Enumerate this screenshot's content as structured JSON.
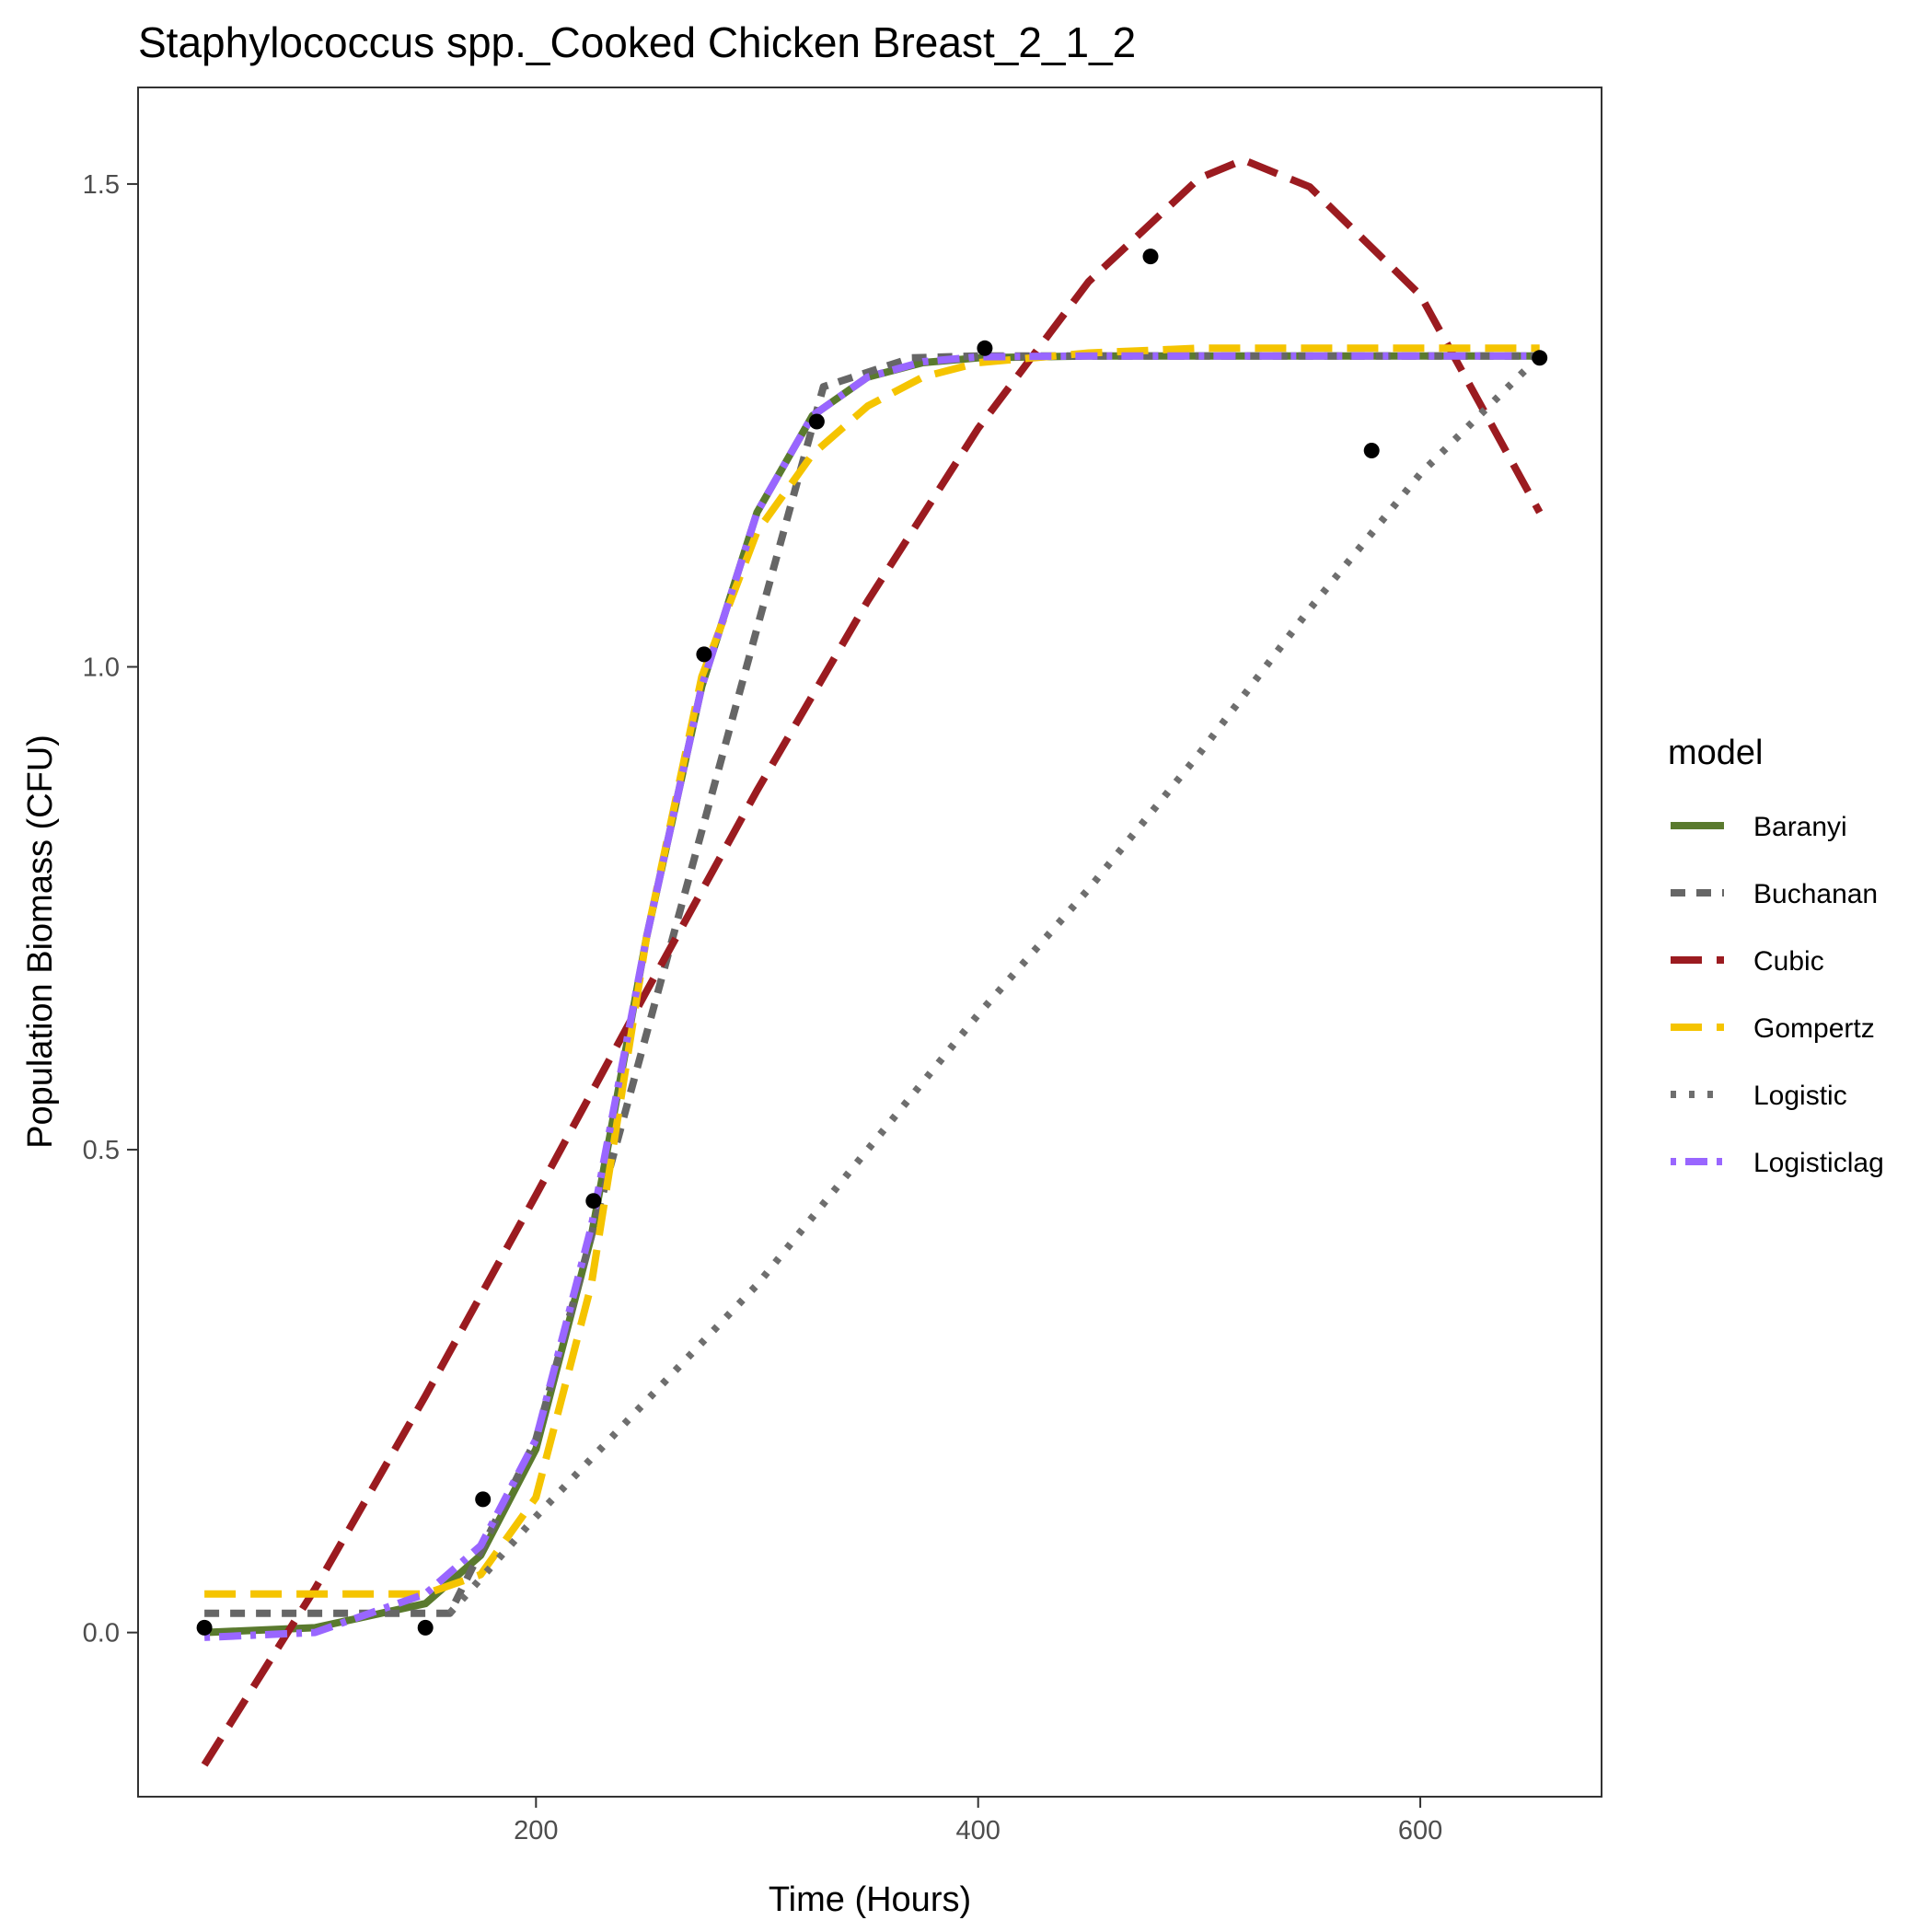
{
  "chart_data": {
    "type": "line",
    "title": "Staphylococcus spp._Cooked Chicken Breast_2_1_2",
    "xlabel": "Time (Hours)",
    "ylabel": "Population Biomass (CFU)",
    "xlim": [
      20,
      682
    ],
    "ylim": [
      -0.17,
      1.6
    ],
    "x_ticks": [
      200,
      400,
      600
    ],
    "x_tick_labels": [
      "200",
      "400",
      "600"
    ],
    "y_ticks": [
      0.0,
      0.5,
      1.0,
      1.5
    ],
    "y_tick_labels": [
      "0.0",
      "0.5",
      "1.0",
      "1.5"
    ],
    "grid": false,
    "legend": {
      "title": "model",
      "placement": "right",
      "entries": [
        "Baranyi",
        "Buchanan",
        "Cubic",
        "Gompertz",
        "Logistic",
        "Logisticlag"
      ]
    },
    "points": [
      {
        "x": 50,
        "y": 0.005
      },
      {
        "x": 150,
        "y": 0.005
      },
      {
        "x": 176,
        "y": 0.138
      },
      {
        "x": 226,
        "y": 0.447
      },
      {
        "x": 276,
        "y": 1.013
      },
      {
        "x": 327,
        "y": 1.254
      },
      {
        "x": 403,
        "y": 1.33
      },
      {
        "x": 478,
        "y": 1.425
      },
      {
        "x": 578,
        "y": 1.224
      },
      {
        "x": 654,
        "y": 1.32
      }
    ],
    "series": [
      {
        "name": "Baranyi",
        "color": "#5a7a2e",
        "dash": "solid",
        "x": [
          50,
          100,
          150,
          175,
          200,
          225,
          250,
          275,
          300,
          325,
          350,
          375,
          400,
          450,
          500,
          550,
          600,
          654
        ],
        "y": [
          0.0,
          0.005,
          0.03,
          0.08,
          0.19,
          0.41,
          0.72,
          0.98,
          1.16,
          1.26,
          1.3,
          1.315,
          1.32,
          1.322,
          1.322,
          1.322,
          1.322,
          1.322
        ]
      },
      {
        "name": "Buchanan",
        "color": "#666666",
        "dash": "dashed",
        "x": [
          50,
          161,
          200,
          250,
          300,
          330,
          370,
          400,
          450,
          500,
          550,
          600,
          654
        ],
        "y": [
          0.02,
          0.02,
          0.2,
          0.62,
          1.04,
          1.29,
          1.32,
          1.322,
          1.322,
          1.322,
          1.322,
          1.322,
          1.322
        ]
      },
      {
        "name": "Cubic",
        "color": "#9b1b20",
        "dash": "longdash",
        "x": [
          50,
          100,
          150,
          200,
          250,
          300,
          350,
          400,
          450,
          500,
          520,
          550,
          600,
          654
        ],
        "y": [
          -0.137,
          0.045,
          0.245,
          0.453,
          0.664,
          0.872,
          1.068,
          1.247,
          1.399,
          1.506,
          1.525,
          1.497,
          1.385,
          1.16
        ]
      },
      {
        "name": "Gompertz",
        "color": "#f5c400",
        "dash": "longdash",
        "x": [
          50,
          150,
          175,
          200,
          225,
          250,
          275,
          300,
          325,
          350,
          375,
          400,
          450,
          500,
          550,
          600,
          654
        ],
        "y": [
          0.04,
          0.04,
          0.06,
          0.14,
          0.36,
          0.72,
          0.99,
          1.14,
          1.22,
          1.27,
          1.3,
          1.315,
          1.325,
          1.33,
          1.33,
          1.33,
          1.33
        ]
      },
      {
        "name": "Logistic",
        "color": "#6e6e6e",
        "dash": "dotted",
        "x": [
          161,
          200,
          250,
          300,
          350,
          400,
          450,
          500,
          550,
          600,
          654
        ],
        "y": [
          0.02,
          0.12,
          0.24,
          0.36,
          0.5,
          0.64,
          0.77,
          0.91,
          1.06,
          1.2,
          1.322
        ]
      },
      {
        "name": "Logisticlag",
        "color": "#9966ff",
        "dash": "dotdash",
        "x": [
          50,
          100,
          150,
          175,
          200,
          225,
          250,
          275,
          300,
          325,
          350,
          375,
          400,
          450,
          500,
          550,
          600,
          654
        ],
        "y": [
          -0.005,
          0.0,
          0.04,
          0.09,
          0.2,
          0.42,
          0.72,
          0.98,
          1.16,
          1.26,
          1.3,
          1.316,
          1.321,
          1.322,
          1.322,
          1.322,
          1.322,
          1.322
        ]
      }
    ]
  }
}
